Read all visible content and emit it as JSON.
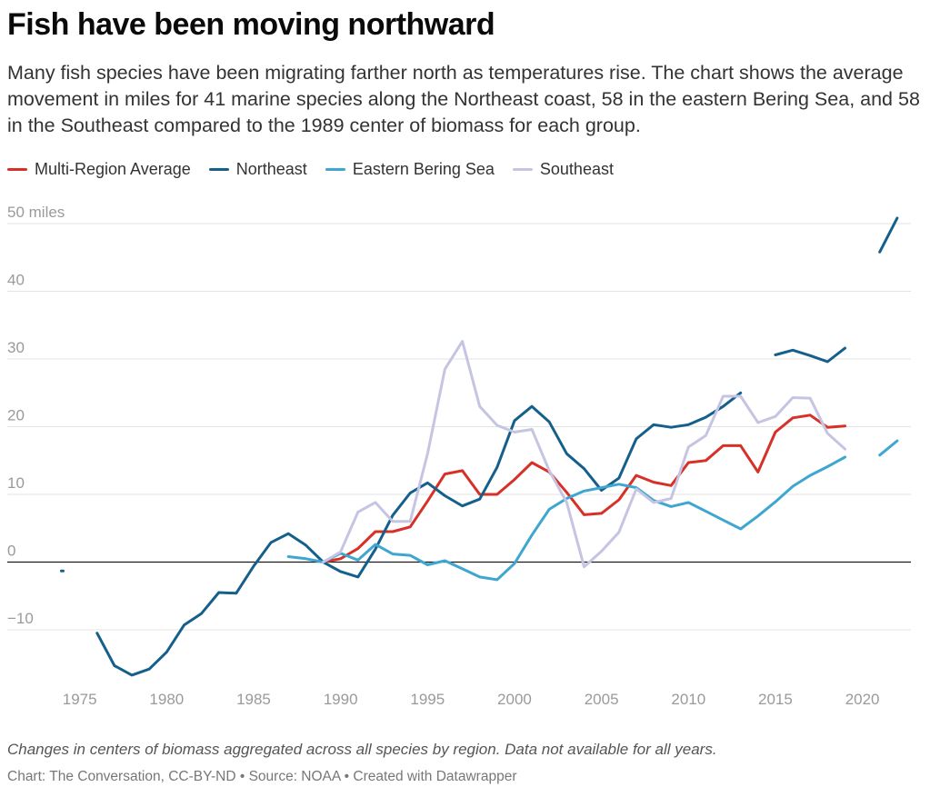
{
  "title": "Fish have been moving northward",
  "subtitle": "Many fish species have been migrating farther north as temperatures rise. The chart shows the average movement in miles for 41 marine species along the Northeast coast, 58 in the eastern Bering Sea, and 58 in the Southeast compared to the 1989 center of biomass for each group.",
  "notes": "Changes in centers of biomass aggregated across all species by region. Data not available for all years.",
  "footer": "Chart: The Conversation, CC-BY-ND • Source: NOAA • Created with Datawrapper",
  "chart_data": {
    "type": "line",
    "title": "Fish have been moving northward",
    "xlabel": "",
    "ylabel": "",
    "xlim": [
      1970,
      2023
    ],
    "ylim": [
      -20,
      54
    ],
    "x_ticks": [
      1975,
      1980,
      1985,
      1990,
      1995,
      2000,
      2005,
      2010,
      2015,
      2020
    ],
    "y_ticks": [
      -10,
      0,
      10,
      20,
      30,
      40,
      50
    ],
    "y_tick_labels": [
      "−10",
      "0",
      "10",
      "20",
      "30",
      "40",
      "50 miles"
    ],
    "grid": "horizontal",
    "zero_line": true,
    "legend": "top-left",
    "series": [
      {
        "name": "Multi-Region Average",
        "color": "#d73027",
        "x": [
          1989,
          1990,
          1991,
          1992,
          1993,
          1994,
          1995,
          1996,
          1997,
          1998,
          1999,
          2000,
          2001,
          2002,
          2003,
          2004,
          2005,
          2006,
          2007,
          2008,
          2009,
          2010,
          2011,
          2012,
          2013,
          2014,
          2015,
          2016,
          2017,
          2018,
          2019
        ],
        "y": [
          0,
          0.5,
          2,
          4.5,
          4.5,
          5.2,
          9,
          13,
          13.5,
          10,
          10,
          12.2,
          14.7,
          13.3,
          10.3,
          7,
          7.2,
          9.2,
          12.8,
          11.8,
          11.3,
          14.7,
          15,
          17.2,
          17.2,
          13.3,
          19.2,
          21.3,
          21.7,
          19.9,
          20.1
        ]
      },
      {
        "name": "Northeast",
        "color": "#15608b",
        "x": [
          1974,
          null,
          1976,
          1977,
          1978,
          1979,
          1980,
          1981,
          1982,
          1983,
          1984,
          1985,
          1986,
          1987,
          1988,
          1989,
          1990,
          1991,
          1992,
          1993,
          1994,
          1995,
          1996,
          1997,
          1998,
          1999,
          2000,
          2001,
          2002,
          2003,
          2004,
          2005,
          2006,
          2007,
          2008,
          2009,
          2010,
          2011,
          2012,
          2013,
          null,
          2015,
          2016,
          2017,
          2018,
          2019,
          null,
          2021,
          2022
        ],
        "y": [
          -1.3,
          null,
          -10.5,
          -15.3,
          -16.7,
          -15.8,
          -13.3,
          -9.3,
          -7.6,
          -4.5,
          -4.6,
          -0.6,
          2.9,
          4.2,
          2.5,
          0,
          -1.4,
          -2.2,
          1.9,
          6.9,
          10.2,
          11.7,
          9.8,
          8.3,
          9.3,
          14,
          20.9,
          23,
          20.7,
          16,
          13.8,
          10.6,
          12.4,
          18.2,
          20.3,
          19.9,
          20.3,
          21.4,
          23,
          25,
          null,
          30.6,
          31.3,
          30.5,
          29.6,
          31.6,
          null,
          45.8,
          50.8
        ]
      },
      {
        "name": "Eastern Bering Sea",
        "color": "#3ea6d0",
        "x": [
          1987,
          1988,
          1989,
          1990,
          1991,
          1992,
          1993,
          1994,
          1995,
          1996,
          1997,
          1998,
          1999,
          2000,
          2001,
          2002,
          2003,
          2004,
          2005,
          2006,
          2007,
          2008,
          2009,
          2010,
          2011,
          2012,
          2013,
          2014,
          2015,
          2016,
          2017,
          2018,
          2019,
          null,
          2021,
          2022
        ],
        "y": [
          0.8,
          0.5,
          0,
          1.3,
          0.3,
          2.6,
          1.2,
          1,
          -0.4,
          0.2,
          -1,
          -2.2,
          -2.6,
          -0.2,
          4,
          7.8,
          9.4,
          10.5,
          11,
          11.5,
          11,
          9.1,
          8.2,
          8.8,
          7.5,
          6.2,
          4.9,
          6.8,
          8.9,
          11.2,
          12.8,
          14.1,
          15.5,
          null,
          15.8,
          17.9
        ]
      },
      {
        "name": "Southeast",
        "color": "#c5c5e3",
        "x": [
          1989,
          1990,
          1991,
          1992,
          1993,
          1994,
          1995,
          1996,
          1997,
          1998,
          1999,
          2000,
          2001,
          2002,
          2003,
          2004,
          2005,
          2006,
          2007,
          2008,
          2009,
          2010,
          2011,
          2012,
          2013,
          2014,
          2015,
          2016,
          2017,
          2018,
          2019
        ],
        "y": [
          0,
          1.5,
          7.4,
          8.8,
          6,
          6,
          16,
          28.5,
          32.6,
          23,
          20.2,
          19.2,
          19.6,
          13.5,
          8.8,
          -0.7,
          1.6,
          4.4,
          10.8,
          8.8,
          9.4,
          17,
          18.7,
          24.5,
          24.5,
          20.6,
          21.5,
          24.3,
          24.2,
          19,
          16.7
        ]
      }
    ]
  }
}
